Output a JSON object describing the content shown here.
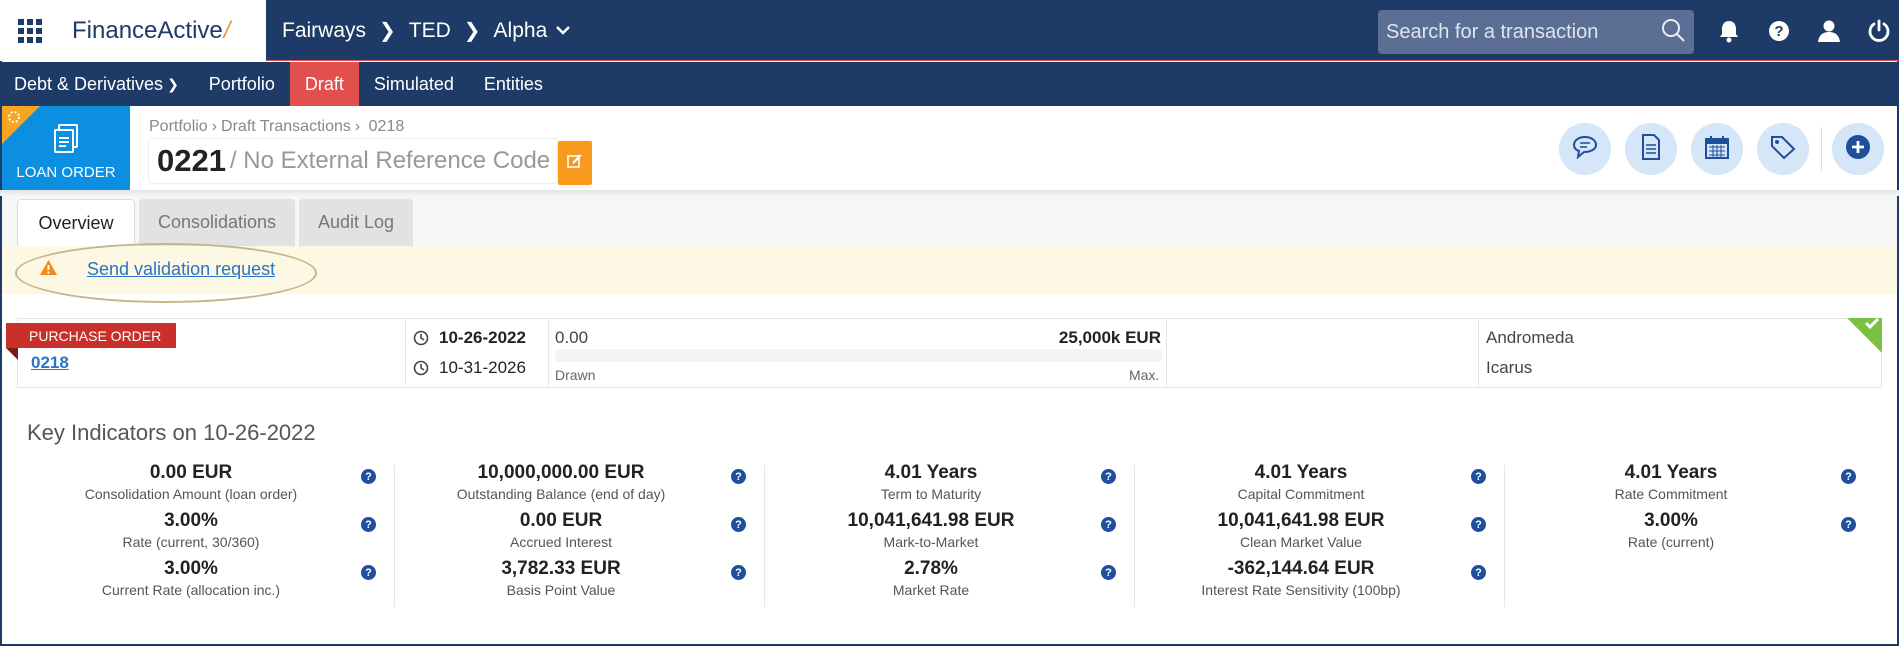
{
  "app": {
    "logo_main": "Finance",
    "logo_bold": "Active",
    "logo_slash": "/"
  },
  "topbar": {
    "breadcrumb": [
      "Fairways",
      "TED",
      "Alpha"
    ],
    "search_placeholder": "Search for a transaction"
  },
  "nav": {
    "items": [
      "Debt & Derivatives",
      "Portfolio",
      "Draft",
      "Simulated",
      "Entities"
    ],
    "active": "Draft"
  },
  "header": {
    "badge_label": "LOAN ORDER",
    "breadcrumb": [
      "Portfolio",
      "Draft Transactions",
      "0218"
    ],
    "number": "0221",
    "reference": "/ No External Reference Code"
  },
  "tabs": [
    "Overview",
    "Consolidations",
    "Audit Log"
  ],
  "warning": {
    "link_text": "Send validation request"
  },
  "transaction": {
    "ribbon": "PURCHASE ORDER",
    "link": "0218",
    "start_date": "10-26-2022",
    "end_date": "10-31-2026",
    "drawn_amount": "0.00",
    "max_amount": "25,000k EUR",
    "drawn_fraction": 0,
    "drawn_label": "Drawn",
    "max_label": "Max.",
    "party_1": "Andromeda",
    "party_2": "Icarus"
  },
  "key_indicators": {
    "title": "Key Indicators on 10-26-2022",
    "columns": [
      [
        {
          "value": "0.00 EUR",
          "label": "Consolidation Amount (loan order)"
        },
        {
          "value": "3.00%",
          "label": "Rate (current, 30/360)"
        },
        {
          "value": "3.00%",
          "label": "Current Rate (allocation inc.)"
        }
      ],
      [
        {
          "value": "10,000,000.00 EUR",
          "label": "Outstanding Balance (end of day)"
        },
        {
          "value": "0.00 EUR",
          "label": "Accrued Interest"
        },
        {
          "value": "3,782.33 EUR",
          "label": "Basis Point Value"
        }
      ],
      [
        {
          "value": "4.01 Years",
          "label": "Term to Maturity"
        },
        {
          "value": "10,041,641.98 EUR",
          "label": "Mark-to-Market"
        },
        {
          "value": "2.78%",
          "label": "Market Rate"
        }
      ],
      [
        {
          "value": "4.01 Years",
          "label": "Capital Commitment"
        },
        {
          "value": "10,041,641.98 EUR",
          "label": "Clean Market Value"
        },
        {
          "value": "-362,144.64 EUR",
          "label": "Interest Rate Sensitivity (100bp)"
        }
      ],
      [
        {
          "value": "4.01 Years",
          "label": "Rate Commitment"
        },
        {
          "value": "3.00%",
          "label": "Rate (current)"
        }
      ]
    ]
  },
  "colors": {
    "navy": "#1e3a66",
    "draft_red": "#e1504d",
    "loan_blue": "#0c8fe0",
    "edit_orange": "#f79a1e",
    "ribbon_red": "#c9302c",
    "valid_green": "#7ac143"
  },
  "icons": {
    "top": [
      "bell-icon",
      "help-icon",
      "user-icon",
      "power-icon"
    ],
    "actions": [
      "comment-icon",
      "document-icon",
      "calendar-icon",
      "tag-icon",
      "add-icon"
    ]
  }
}
